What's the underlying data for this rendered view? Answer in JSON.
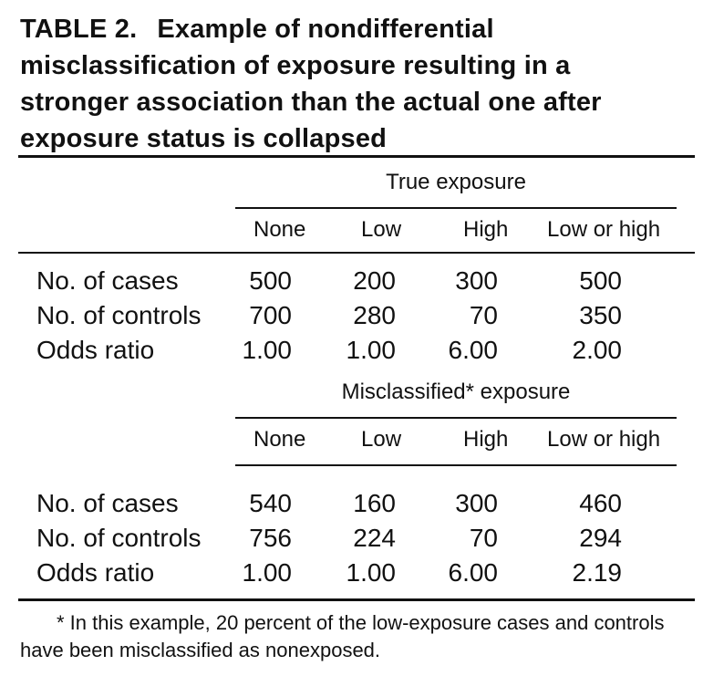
{
  "caption": {
    "label": "TABLE 2.",
    "title": "Example of nondifferential misclassification of exposure resulting in a stronger association than the actual one after exposure status is collapsed"
  },
  "table": {
    "true_section": {
      "title": "True exposure",
      "columns": [
        "None",
        "Low",
        "High",
        "Low or high"
      ],
      "rows": [
        {
          "label": "No. of cases",
          "values": [
            "500",
            "200",
            "300",
            "500"
          ]
        },
        {
          "label": "No. of controls",
          "values": [
            "700",
            "280",
            "70",
            "350"
          ]
        },
        {
          "label": "Odds ratio",
          "values": [
            "1.00",
            "1.00",
            "6.00",
            "2.00"
          ]
        }
      ]
    },
    "misclassified_section": {
      "title": "Misclassified* exposure",
      "columns": [
        "None",
        "Low",
        "High",
        "Low or high"
      ],
      "rows": [
        {
          "label": "No. of cases",
          "values": [
            "540",
            "160",
            "300",
            "460"
          ]
        },
        {
          "label": "No. of controls",
          "values": [
            "756",
            "224",
            "70",
            "294"
          ]
        },
        {
          "label": "Odds ratio",
          "values": [
            "1.00",
            "1.00",
            "6.00",
            "2.19"
          ]
        }
      ]
    }
  },
  "footnote": "* In this example, 20 percent of the low-exposure cases and controls have been misclassified as nonexposed."
}
